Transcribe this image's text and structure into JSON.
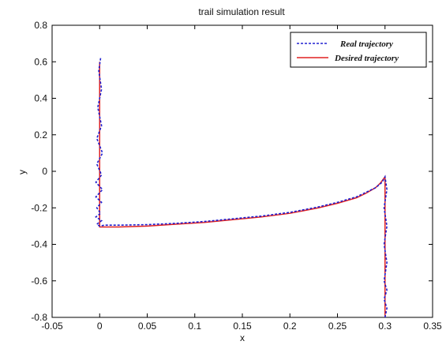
{
  "chart_data": {
    "type": "line",
    "title": "trail simulation result",
    "xlabel": "x",
    "ylabel": "y",
    "xlim": [
      -0.05,
      0.35
    ],
    "ylim": [
      -0.8,
      0.8
    ],
    "x_ticks": [
      -0.05,
      0,
      0.05,
      0.1,
      0.15,
      0.2,
      0.25,
      0.3,
      0.35
    ],
    "x_tick_labels": [
      "-0.05",
      "0",
      "0.05",
      "0.1",
      "0.15",
      "0.2",
      "0.25",
      "0.3",
      "0.35"
    ],
    "y_ticks": [
      -0.8,
      -0.6,
      -0.4,
      -0.2,
      0,
      0.2,
      0.4,
      0.6,
      0.8
    ],
    "y_tick_labels": [
      "-0.8",
      "-0.6",
      "-0.4",
      "-0.2",
      "0",
      "0.2",
      "0.4",
      "0.6",
      "0.8"
    ],
    "grid": false,
    "legend_position": "top-right",
    "series": [
      {
        "name": "Real trajectory",
        "color": "#2020d0",
        "style": "dashed",
        "x": [
          0.001,
          -0.001,
          0.002,
          -0.002,
          0.002,
          -0.003,
          0.003,
          -0.003,
          0.002,
          -0.004,
          0.003,
          -0.004,
          0.002,
          -0.003,
          0.001,
          -0.004,
          0.002,
          -0.003,
          0.0,
          0.005,
          0.02,
          0.05,
          0.08,
          0.11,
          0.14,
          0.17,
          0.2,
          0.23,
          0.25,
          0.27,
          0.28,
          0.29,
          0.297,
          0.3,
          0.302,
          0.299,
          0.302,
          0.299,
          0.302,
          0.299,
          0.302,
          0.299,
          0.302,
          0.3
        ],
        "y": [
          0.62,
          0.55,
          0.45,
          0.35,
          0.25,
          0.18,
          0.1,
          0.04,
          -0.02,
          -0.06,
          -0.1,
          -0.14,
          -0.17,
          -0.2,
          -0.23,
          -0.25,
          -0.27,
          -0.29,
          -0.3,
          -0.295,
          -0.295,
          -0.292,
          -0.285,
          -0.275,
          -0.26,
          -0.245,
          -0.225,
          -0.195,
          -0.17,
          -0.14,
          -0.115,
          -0.09,
          -0.06,
          -0.03,
          -0.1,
          -0.2,
          -0.3,
          -0.4,
          -0.5,
          -0.6,
          -0.65,
          -0.7,
          -0.75,
          -0.8
        ]
      },
      {
        "name": "Desired trajectory",
        "color": "#e02020",
        "style": "solid",
        "x": [
          0.0,
          0.0,
          0.0,
          0.02,
          0.05,
          0.08,
          0.11,
          0.14,
          0.17,
          0.2,
          0.23,
          0.25,
          0.27,
          0.28,
          0.29,
          0.295,
          0.3,
          0.3,
          0.3
        ],
        "y": [
          0.6,
          0.0,
          -0.305,
          -0.305,
          -0.3,
          -0.29,
          -0.28,
          -0.265,
          -0.25,
          -0.23,
          -0.2,
          -0.175,
          -0.145,
          -0.12,
          -0.09,
          -0.065,
          -0.03,
          -0.4,
          -0.8
        ]
      }
    ]
  }
}
